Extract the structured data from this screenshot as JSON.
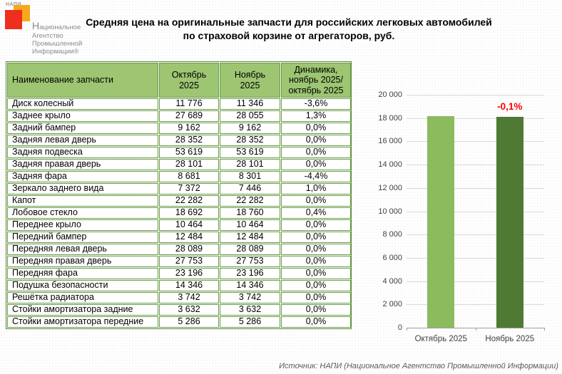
{
  "logo": {
    "brand_small": "НАПИ",
    "lines": [
      "Национальное",
      "Агентство",
      "Промышленной",
      "Информации®"
    ]
  },
  "title": {
    "line1": "Средняя цена на оригинальные запчасти для российских легковых автомобилей",
    "line2": "по страховой корзине от агрегаторов, руб."
  },
  "table": {
    "headers": [
      "Наименование запчасти",
      "Октябрь\n2025",
      "Ноябрь\n2025",
      "Динамика,\nноябрь 2025/\nоктябрь 2025"
    ],
    "rows": [
      [
        "Диск колесный",
        "11 776",
        "11 346",
        "-3,6%"
      ],
      [
        "Заднее крыло",
        "27 689",
        "28 055",
        "1,3%"
      ],
      [
        "Задний бампер",
        "9 162",
        "9 162",
        "0,0%"
      ],
      [
        "Задняя левая дверь",
        "28 352",
        "28 352",
        "0,0%"
      ],
      [
        "Задняя подвеска",
        "53 619",
        "53 619",
        "0,0%"
      ],
      [
        "Задняя правая дверь",
        "28 101",
        "28 101",
        "0,0%"
      ],
      [
        "Задняя фара",
        "8 681",
        "8 301",
        "-4,4%"
      ],
      [
        "Зеркало заднего вида",
        "7 372",
        "7 446",
        "1,0%"
      ],
      [
        "Капот",
        "22 282",
        "22 282",
        "0,0%"
      ],
      [
        "Лобовое стекло",
        "18 692",
        "18 760",
        "0,4%"
      ],
      [
        "Переднее крыло",
        "10 464",
        "10 464",
        "0,0%"
      ],
      [
        "Передний бампер",
        "12 484",
        "12 484",
        "0,0%"
      ],
      [
        "Передняя левая дверь",
        "28 089",
        "28 089",
        "0,0%"
      ],
      [
        "Передняя правая дверь",
        "27 753",
        "27 753",
        "0,0%"
      ],
      [
        "Передняя фара",
        "23 196",
        "23 196",
        "0,0%"
      ],
      [
        "Подушка безопасности",
        "14 346",
        "14 346",
        "0,0%"
      ],
      [
        "Решётка радиатора",
        "3 742",
        "3 742",
        "0,0%"
      ],
      [
        "Стойки амортизатора задние",
        "3 632",
        "3 632",
        "0,0%"
      ],
      [
        "Стойки амортизатора передние",
        "5 286",
        "5 286",
        "0,0%"
      ]
    ]
  },
  "chart_data": {
    "type": "bar",
    "title": "",
    "categories": [
      "Октябрь 2025",
      "Ноябрь 2025"
    ],
    "values": [
      18143,
      18127
    ],
    "bar_colors": [
      "#8cbb5e",
      "#4e7a33"
    ],
    "annotation": {
      "text": "-0,1%",
      "color": "#ff0000",
      "target_category_index": 1
    },
    "ylim": [
      0,
      20000
    ],
    "ytick_step": 2000,
    "grid": true,
    "legend": "none"
  },
  "source": "Источник: НАПИ (Национальное Агентство Промышленной Информации)",
  "colors": {
    "header_green": "#9dc572",
    "border_green": "#6a9c48",
    "bar_light_green": "#8cbb5e",
    "bar_dark_green": "#4e7a33",
    "annotation_red": "#ff0000",
    "logo_orange": "#f6a81c",
    "logo_red": "#ee2e1f"
  }
}
